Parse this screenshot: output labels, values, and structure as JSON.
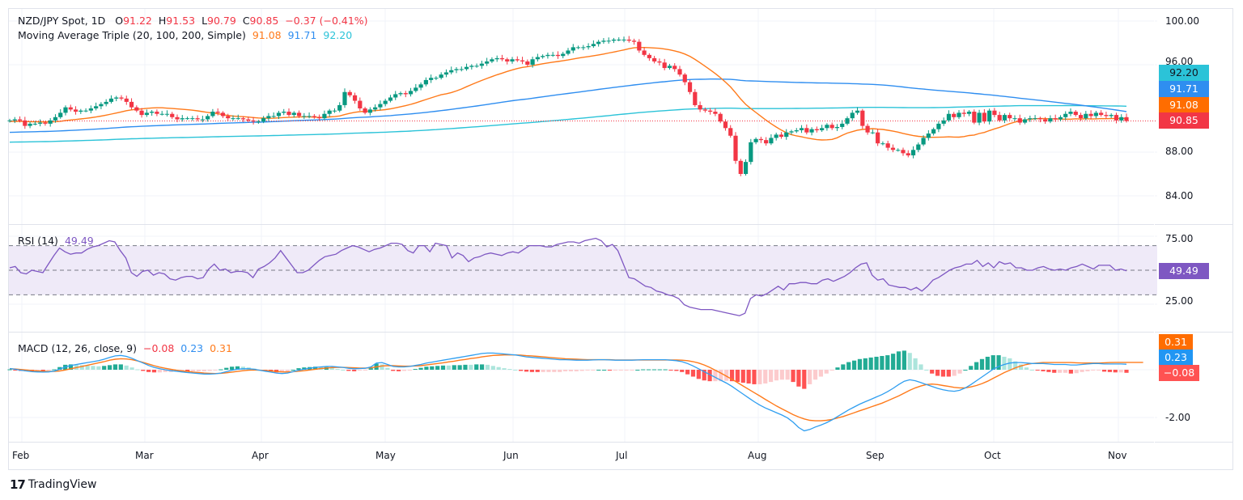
{
  "header": {
    "symbol": "NZD/JPY Spot, 1D",
    "open_label": "O",
    "open": "91.22",
    "high_label": "H",
    "high": "91.53",
    "low_label": "L",
    "low": "90.79",
    "close_label": "C",
    "close": "90.85",
    "change": "−0.37 (−0.41%)",
    "ma_title": "Moving Average Triple (20, 100, 200, Simple)",
    "ma20": "91.08",
    "ma100": "91.71",
    "ma200": "92.20"
  },
  "rsi": {
    "title": "RSI (14)",
    "value": "49.49"
  },
  "macd": {
    "title": "MACD (12, 26, close, 9)",
    "hist": "−0.08",
    "macd": "0.23",
    "signal": "0.31"
  },
  "price_tags": {
    "ma200": "92.20",
    "ma100": "91.71",
    "ma20": "91.08",
    "last": "90.85"
  },
  "rsi_tag": "49.49",
  "macd_tags": {
    "signal": "0.31",
    "macd": "0.23",
    "hist": "−0.08"
  },
  "brand": "TradingView",
  "colors": {
    "up": "#089981",
    "down": "#f23645",
    "ma20": "#ff7a1a",
    "ma100": "#2f8ef0",
    "ma200": "#2bc3d8",
    "rsi": "#7e57c2",
    "rsi_band": "#efeaf8",
    "macd": "#2f9ef0",
    "signal": "#ff7a1a",
    "hist_up": "#22ab94",
    "hist_up_light": "#ace5dc",
    "hist_down": "#ff5252",
    "hist_down_light": "#fccbcd",
    "grid": "#f0f3fa",
    "last_line": "#f23645"
  },
  "chart_data": [
    {
      "type": "candlestick",
      "title": "NZD/JPY Spot, 1D",
      "ylim": [
        82.5,
        101
      ],
      "yticks": [
        "100.00",
        "96.00",
        "88.00",
        "84.00"
      ],
      "ytick_values": [
        100,
        96,
        88,
        84
      ],
      "xticks": [
        "Feb",
        "Mar",
        "Apr",
        "May",
        "Jun",
        "Jul",
        "Aug",
        "Sep",
        "Oct",
        "Nov"
      ],
      "last_price": 90.85,
      "closes": [
        90.9,
        91.0,
        90.9,
        90.4,
        90.6,
        90.6,
        90.7,
        90.6,
        90.9,
        91.2,
        91.6,
        92.1,
        91.9,
        91.7,
        91.8,
        91.8,
        92.0,
        92.2,
        92.4,
        92.6,
        92.9,
        93.0,
        92.9,
        92.6,
        92.1,
        91.8,
        91.4,
        91.6,
        91.7,
        91.5,
        91.5,
        91.5,
        91.2,
        91.0,
        91.1,
        91.1,
        91.1,
        91.0,
        91.0,
        91.3,
        91.7,
        91.6,
        91.3,
        91.1,
        91.1,
        91.1,
        91.0,
        90.9,
        90.8,
        90.8,
        91.1,
        91.3,
        91.3,
        91.6,
        91.7,
        91.4,
        91.6,
        91.3,
        91.3,
        91.3,
        91.2,
        91.1,
        91.5,
        91.8,
        91.8,
        92.3,
        93.5,
        93.2,
        92.7,
        92.0,
        91.6,
        91.9,
        92.1,
        92.4,
        92.7,
        93.0,
        93.3,
        93.4,
        93.3,
        93.6,
        93.9,
        94.2,
        94.6,
        94.8,
        94.8,
        95.1,
        95.3,
        95.5,
        95.6,
        95.6,
        95.8,
        95.9,
        95.9,
        96.1,
        96.3,
        96.5,
        96.6,
        96.5,
        96.3,
        96.5,
        96.4,
        96.3,
        96.0,
        96.5,
        96.7,
        96.8,
        96.9,
        96.9,
        96.8,
        97.0,
        97.3,
        97.6,
        97.6,
        97.6,
        97.7,
        97.9,
        98.1,
        98.2,
        98.2,
        98.3,
        98.3,
        98.3,
        98.2,
        98.1,
        97.3,
        96.9,
        96.6,
        96.3,
        96.2,
        95.7,
        95.9,
        95.6,
        95.1,
        94.4,
        93.5,
        92.3,
        91.9,
        91.8,
        91.7,
        91.5,
        90.8,
        90.2,
        89.5,
        87.2,
        86.0,
        87.1,
        88.9,
        89.2,
        89.1,
        88.8,
        89.3,
        89.6,
        89.4,
        89.8,
        89.9,
        90.0,
        90.2,
        89.8,
        90.1,
        90.0,
        90.2,
        90.5,
        90.2,
        90.3,
        90.6,
        91.1,
        91.6,
        91.8,
        90.4,
        89.8,
        89.8,
        88.8,
        88.8,
        88.4,
        88.2,
        88.2,
        87.9,
        87.7,
        88.2,
        88.7,
        89.3,
        89.7,
        90.1,
        90.6,
        90.9,
        91.5,
        91.2,
        91.6,
        91.5,
        91.7,
        90.7,
        91.6,
        90.8,
        91.8,
        91.4,
        90.9,
        91.4,
        91.1,
        91.1,
        90.7,
        91.0,
        91.1,
        91.1,
        91.0,
        90.8,
        91.1,
        91.0,
        91.2,
        91.5,
        91.7,
        91.4,
        91.1,
        91.5,
        91.3,
        91.6,
        91.4,
        91.3,
        91.4,
        90.9,
        91.2,
        90.85
      ],
      "series": [
        {
          "name": "SMA 20",
          "last": 91.08
        },
        {
          "name": "SMA 100",
          "last": 91.71
        },
        {
          "name": "SMA 200",
          "last": 92.2
        }
      ]
    },
    {
      "type": "line",
      "title": "RSI (14)",
      "ylim": [
        0,
        100
      ],
      "yticks": [
        "75.00",
        "25.00"
      ],
      "bands": [
        30,
        50,
        70
      ],
      "last": 49.49,
      "values": [
        52,
        53,
        48,
        47,
        50,
        49,
        48,
        55,
        62,
        68,
        65,
        63,
        64,
        64,
        67,
        69,
        70,
        72,
        74,
        73,
        66,
        60,
        48,
        45,
        49,
        50,
        46,
        48,
        47,
        43,
        42,
        44,
        45,
        45,
        43,
        44,
        51,
        55,
        50,
        51,
        48,
        49,
        49,
        48,
        44,
        51,
        53,
        56,
        60,
        66,
        60,
        54,
        48,
        48,
        50,
        54,
        58,
        61,
        62,
        63,
        66,
        68,
        70,
        69,
        67,
        65,
        67,
        68,
        70,
        72,
        72,
        71,
        66,
        64,
        70,
        70,
        65,
        72,
        71,
        70,
        60,
        64,
        62,
        57,
        60,
        61,
        63,
        64,
        63,
        62,
        64,
        65,
        64,
        67,
        70,
        70,
        70,
        69,
        69,
        71,
        72,
        73,
        73,
        72,
        74,
        75,
        76,
        74,
        69,
        71,
        66,
        55,
        44,
        43,
        40,
        37,
        36,
        33,
        32,
        30,
        29,
        27,
        22,
        20,
        19,
        18,
        18,
        18,
        17,
        16,
        15,
        14,
        13,
        15,
        27,
        30,
        29,
        31,
        34,
        37,
        34,
        39,
        39,
        40,
        40,
        39,
        39,
        42,
        43,
        41,
        43,
        45,
        48,
        52,
        55,
        56,
        46,
        42,
        43,
        38,
        37,
        36,
        36,
        34,
        36,
        33,
        37,
        42,
        44,
        47,
        50,
        52,
        53,
        55,
        55,
        58,
        53,
        56,
        52,
        57,
        55,
        56,
        52,
        52,
        50,
        50,
        52,
        53,
        51,
        50,
        51,
        50,
        52,
        53,
        55,
        53,
        51,
        54,
        54,
        54,
        50,
        51,
        49.5
      ]
    },
    {
      "type": "bar+line",
      "title": "MACD (12, 26, close, 9)",
      "ylim": [
        -2.9,
        1.0
      ],
      "yticks": [
        "-2.00"
      ],
      "macd_last": 0.23,
      "signal_last": 0.31,
      "hist_last": -0.08,
      "macd": [
        0.05,
        0.02,
        -0.02,
        -0.05,
        -0.08,
        -0.09,
        -0.1,
        -0.09,
        -0.06,
        0.02,
        0.12,
        0.18,
        0.22,
        0.26,
        0.3,
        0.34,
        0.38,
        0.44,
        0.52,
        0.58,
        0.6,
        0.56,
        0.48,
        0.38,
        0.28,
        0.18,
        0.1,
        0.04,
        0.0,
        -0.04,
        -0.06,
        -0.09,
        -0.12,
        -0.14,
        -0.16,
        -0.18,
        -0.18,
        -0.17,
        -0.14,
        -0.08,
        -0.02,
        0.02,
        0.04,
        0.04,
        0.02,
        -0.02,
        -0.06,
        -0.1,
        -0.14,
        -0.16,
        -0.14,
        -0.08,
        -0.02,
        0.02,
        0.06,
        0.1,
        0.12,
        0.14,
        0.14,
        0.12,
        0.1,
        0.06,
        0.04,
        0.05,
        0.06,
        0.12,
        0.28,
        0.3,
        0.22,
        0.14,
        0.12,
        0.12,
        0.14,
        0.18,
        0.22,
        0.28,
        0.32,
        0.36,
        0.4,
        0.44,
        0.48,
        0.52,
        0.56,
        0.6,
        0.64,
        0.68,
        0.7,
        0.7,
        0.68,
        0.66,
        0.64,
        0.62,
        0.58,
        0.54,
        0.52,
        0.5,
        0.48,
        0.46,
        0.44,
        0.42,
        0.42,
        0.41,
        0.4,
        0.4,
        0.4,
        0.41,
        0.42,
        0.42,
        0.41,
        0.4,
        0.4,
        0.4,
        0.4,
        0.41,
        0.42,
        0.42,
        0.42,
        0.42,
        0.42,
        0.4,
        0.38,
        0.34,
        0.26,
        0.16,
        0.04,
        -0.08,
        -0.2,
        -0.32,
        -0.44,
        -0.56,
        -0.7,
        -0.86,
        -1.02,
        -1.18,
        -1.34,
        -1.48,
        -1.6,
        -1.7,
        -1.8,
        -1.9,
        -2.02,
        -2.2,
        -2.42,
        -2.56,
        -2.5,
        -2.4,
        -2.32,
        -2.22,
        -2.1,
        -1.96,
        -1.82,
        -1.68,
        -1.56,
        -1.44,
        -1.34,
        -1.24,
        -1.14,
        -1.04,
        -0.92,
        -0.78,
        -0.62,
        -0.48,
        -0.42,
        -0.46,
        -0.54,
        -0.62,
        -0.7,
        -0.78,
        -0.84,
        -0.88,
        -0.9,
        -0.86,
        -0.76,
        -0.62,
        -0.46,
        -0.3,
        -0.14,
        0.02,
        0.14,
        0.22,
        0.28,
        0.3,
        0.3,
        0.28,
        0.26,
        0.26,
        0.26,
        0.24,
        0.22,
        0.22,
        0.22,
        0.2,
        0.2,
        0.22,
        0.24,
        0.26,
        0.26,
        0.24,
        0.24,
        0.24,
        0.24,
        0.23
      ],
      "signal": [
        0.04,
        0.03,
        0.01,
        -0.01,
        -0.03,
        -0.05,
        -0.06,
        -0.07,
        -0.07,
        -0.05,
        -0.01,
        0.04,
        0.09,
        0.14,
        0.19,
        0.24,
        0.29,
        0.34,
        0.4,
        0.44,
        0.46,
        0.45,
        0.42,
        0.37,
        0.31,
        0.24,
        0.17,
        0.11,
        0.06,
        0.02,
        -0.02,
        -0.05,
        -0.07,
        -0.1,
        -0.12,
        -0.14,
        -0.15,
        -0.16,
        -0.15,
        -0.13,
        -0.1,
        -0.07,
        -0.04,
        -0.02,
        -0.01,
        -0.02,
        -0.03,
        -0.05,
        -0.07,
        -0.09,
        -0.09,
        -0.08,
        -0.06,
        -0.04,
        -0.01,
        0.02,
        0.05,
        0.07,
        0.09,
        0.1,
        0.1,
        0.09,
        0.08,
        0.07,
        0.07,
        0.08,
        0.12,
        0.16,
        0.17,
        0.17,
        0.16,
        0.15,
        0.15,
        0.16,
        0.17,
        0.2,
        0.23,
        0.26,
        0.29,
        0.33,
        0.36,
        0.4,
        0.43,
        0.47,
        0.5,
        0.54,
        0.57,
        0.6,
        0.61,
        0.62,
        0.62,
        0.62,
        0.61,
        0.59,
        0.58,
        0.56,
        0.54,
        0.52,
        0.5,
        0.48,
        0.46,
        0.45,
        0.44,
        0.43,
        0.42,
        0.42,
        0.42,
        0.42,
        0.42,
        0.41,
        0.41,
        0.41,
        0.41,
        0.41,
        0.41,
        0.41,
        0.41,
        0.41,
        0.41,
        0.41,
        0.41,
        0.4,
        0.38,
        0.34,
        0.28,
        0.2,
        0.1,
        -0.02,
        -0.14,
        -0.27,
        -0.4,
        -0.54,
        -0.68,
        -0.82,
        -0.96,
        -1.1,
        -1.24,
        -1.38,
        -1.52,
        -1.64,
        -1.76,
        -1.88,
        -1.98,
        -2.06,
        -2.12,
        -2.14,
        -2.14,
        -2.12,
        -2.08,
        -2.02,
        -1.96,
        -1.88,
        -1.8,
        -1.72,
        -1.64,
        -1.56,
        -1.48,
        -1.4,
        -1.3,
        -1.2,
        -1.1,
        -0.98,
        -0.86,
        -0.76,
        -0.68,
        -0.62,
        -0.6,
        -0.62,
        -0.66,
        -0.7,
        -0.74,
        -0.76,
        -0.76,
        -0.72,
        -0.66,
        -0.58,
        -0.48,
        -0.36,
        -0.24,
        -0.12,
        -0.02,
        0.08,
        0.16,
        0.22,
        0.26,
        0.28,
        0.3,
        0.3,
        0.3,
        0.3,
        0.3,
        0.3,
        0.29,
        0.28,
        0.28,
        0.28,
        0.28,
        0.29,
        0.3,
        0.31,
        0.31,
        0.31,
        0.31,
        0.31,
        0.31
      ]
    }
  ]
}
